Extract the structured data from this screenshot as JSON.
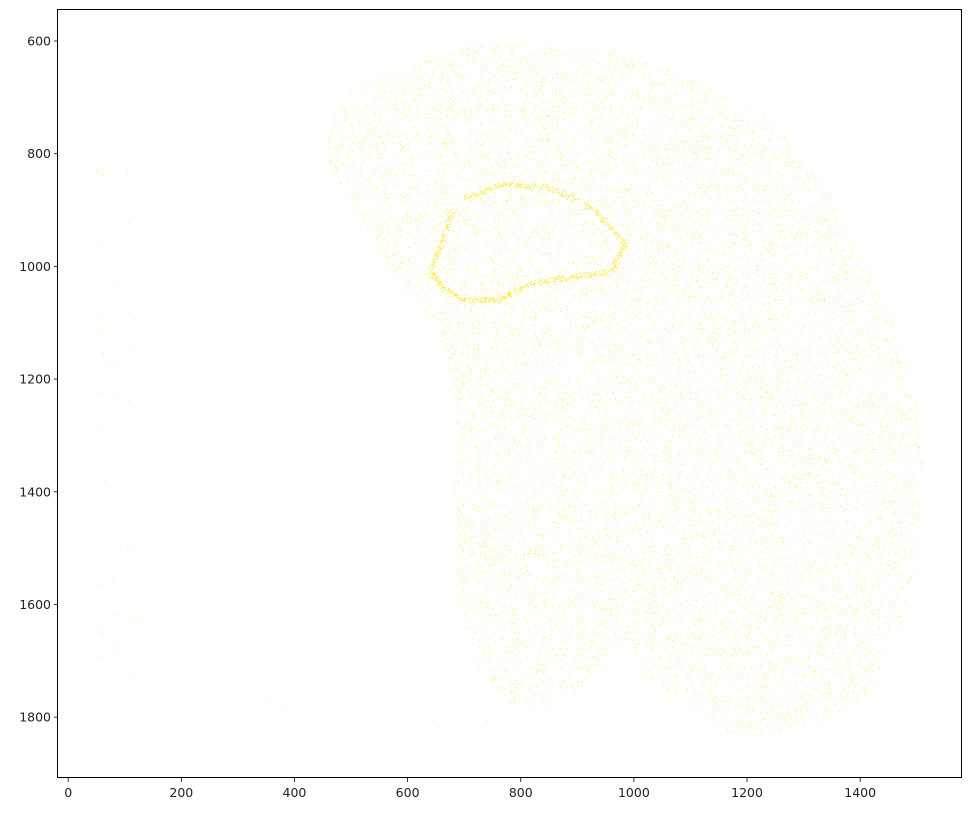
{
  "chart_data": {
    "type": "scatter",
    "title": "",
    "xlabel": "",
    "ylabel": "",
    "xlim": [
      -18,
      1580
    ],
    "ylim": [
      1908,
      545
    ],
    "y_inverted": true,
    "grid": false,
    "legend": "none",
    "x_ticks": [
      0,
      200,
      400,
      600,
      800,
      1000,
      1200,
      1400
    ],
    "y_ticks": [
      600,
      800,
      1000,
      1200,
      1400,
      1600,
      1800
    ],
    "x_tick_labels": [
      "0",
      "200",
      "400",
      "600",
      "800",
      "1000",
      "1200",
      "1400"
    ],
    "y_tick_labels": [
      "600",
      "800",
      "1000",
      "1200",
      "1400",
      "1600",
      "1800"
    ],
    "marker_color": "#fde725",
    "series": [
      {
        "point_density_note": "dense cloud of tiny points forming a coronal brain-section shape",
        "outline_polygon": [
          [
            455,
            770
          ],
          [
            470,
            720
          ],
          [
            510,
            680
          ],
          [
            560,
            660
          ],
          [
            620,
            640
          ],
          [
            700,
            610
          ],
          [
            800,
            600
          ],
          [
            900,
            612
          ],
          [
            1000,
            630
          ],
          [
            1100,
            665
          ],
          [
            1200,
            715
          ],
          [
            1280,
            780
          ],
          [
            1350,
            880
          ],
          [
            1410,
            990
          ],
          [
            1460,
            1110
          ],
          [
            1495,
            1220
          ],
          [
            1512,
            1320
          ],
          [
            1505,
            1440
          ],
          [
            1490,
            1560
          ],
          [
            1460,
            1660
          ],
          [
            1410,
            1760
          ],
          [
            1330,
            1810
          ],
          [
            1240,
            1835
          ],
          [
            1170,
            1830
          ],
          [
            1080,
            1780
          ],
          [
            1020,
            1720
          ],
          [
            985,
            1660
          ],
          [
            950,
            1700
          ],
          [
            900,
            1750
          ],
          [
            840,
            1780
          ],
          [
            790,
            1780
          ],
          [
            760,
            1760
          ],
          [
            720,
            1700
          ],
          [
            690,
            1600
          ],
          [
            690,
            1500
          ],
          [
            680,
            1400
          ],
          [
            690,
            1300
          ],
          [
            680,
            1200
          ],
          [
            660,
            1140
          ],
          [
            630,
            1080
          ],
          [
            590,
            1040
          ],
          [
            560,
            1000
          ],
          [
            530,
            940
          ],
          [
            490,
            880
          ],
          [
            465,
            830
          ]
        ],
        "hippocampus_arc": [
          [
            700,
            880
          ],
          [
            770,
            855
          ],
          [
            850,
            860
          ],
          [
            930,
            900
          ],
          [
            985,
            960
          ],
          [
            960,
            1010
          ],
          [
            890,
            1020
          ],
          [
            820,
            1030
          ],
          [
            760,
            1060
          ],
          [
            700,
            1060
          ]
        ],
        "hippocampus_arc_inner": [
          [
            680,
            900
          ],
          [
            660,
            960
          ],
          [
            640,
            1010
          ],
          [
            665,
            1040
          ],
          [
            700,
            1060
          ]
        ],
        "outliers": [
          [
            52,
            832
          ],
          [
            62,
            837
          ],
          [
            105,
            831
          ],
          [
            108,
            924
          ],
          [
            86,
            1038
          ],
          [
            53,
            964
          ],
          [
            55,
            1095
          ],
          [
            57,
            1115
          ],
          [
            60,
            1122
          ],
          [
            62,
            1155
          ],
          [
            109,
            1085
          ],
          [
            118,
            1092
          ],
          [
            115,
            1150
          ],
          [
            70,
            1180
          ],
          [
            80,
            1175
          ],
          [
            55,
            1225
          ],
          [
            56,
            1280
          ],
          [
            85,
            1230
          ],
          [
            108,
            1240
          ],
          [
            65,
            1382
          ],
          [
            105,
            1500
          ],
          [
            115,
            1500
          ],
          [
            80,
            1550
          ],
          [
            60,
            1565
          ],
          [
            55,
            1640
          ],
          [
            60,
            1650
          ],
          [
            87,
            1620
          ],
          [
            115,
            1632
          ],
          [
            120,
            1628
          ],
          [
            80,
            1672
          ],
          [
            86,
            1680
          ],
          [
            55,
            1695
          ],
          [
            63,
            1693
          ],
          [
            108,
            1720
          ],
          [
            355,
            1770
          ],
          [
            383,
            1785
          ],
          [
            655,
            1818
          ],
          [
            740,
            1808
          ],
          [
            1230,
            728
          ]
        ]
      }
    ]
  }
}
